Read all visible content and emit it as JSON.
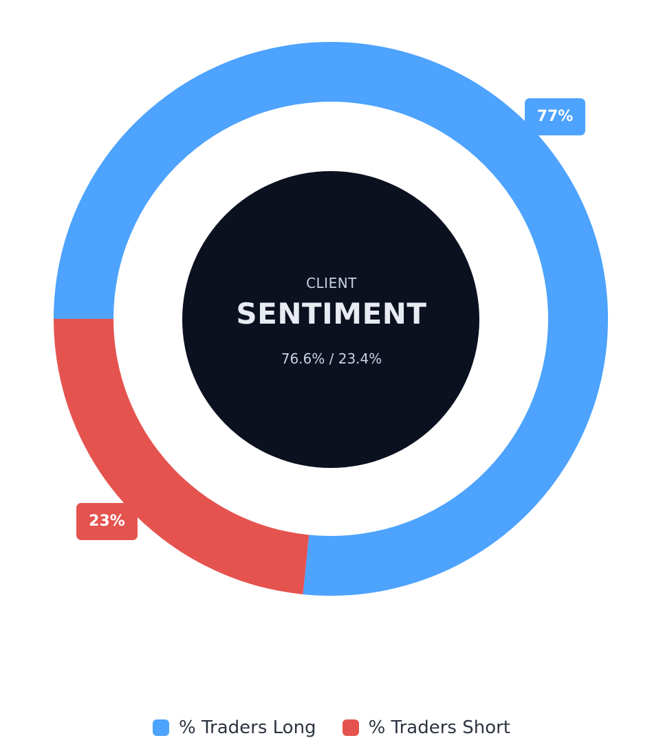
{
  "chart_data": {
    "type": "pie",
    "title": "",
    "categories": [
      "% Traders Long",
      "% Traders Short"
    ],
    "values": [
      76.6,
      23.4
    ],
    "colors": [
      "#4da3fd",
      "#e5534f"
    ],
    "data_labels": [
      "77%",
      "23%"
    ],
    "legend": {
      "placement": "bottom",
      "items": [
        "% Traders Long",
        "% Traders Short"
      ]
    },
    "grid": false
  },
  "center": {
    "kicker": "CLIENT",
    "title": "SENTIMENT",
    "ratio": "76.6% / 23.4%"
  },
  "colors": {
    "long": "#4da3fd",
    "short": "#e5534f",
    "center_bg": "#0c1120"
  }
}
